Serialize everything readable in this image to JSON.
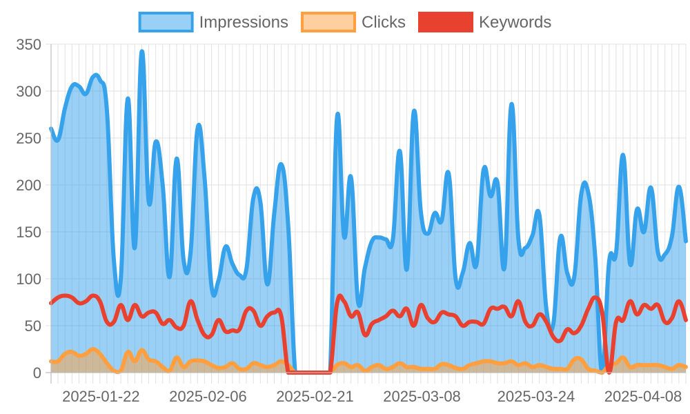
{
  "chart_data": {
    "type": "area",
    "x_start": "2025-01-15",
    "x_end": "2025-04-14",
    "x_tick_labels": [
      "2025-01-22",
      "2025-02-06",
      "2025-02-21",
      "2025-03-08",
      "2025-03-24",
      "2025-04-08"
    ],
    "ylim": [
      0,
      350
    ],
    "y_ticks": [
      0,
      50,
      100,
      150,
      200,
      250,
      300,
      350
    ],
    "grid": true,
    "legend_position": "top",
    "series": [
      {
        "name": "Impressions",
        "color": "#36a2eb",
        "fill": "rgba(54,162,235,0.5)",
        "values": [
          260,
          248,
          282,
          305,
          305,
          297,
          315,
          312,
          280,
          120,
          100,
          292,
          133,
          342,
          182,
          246,
          200,
          102,
          228,
          120,
          128,
          260,
          208,
          92,
          98,
          134,
          116,
          104,
          110,
          186,
          182,
          94,
          170,
          222,
          156,
          0,
          0,
          0,
          0,
          0,
          0,
          272,
          145,
          208,
          76,
          112,
          140,
          144,
          142,
          142,
          236,
          110,
          278,
          172,
          148,
          170,
          162,
          212,
          100,
          106,
          138,
          116,
          216,
          188,
          202,
          112,
          286,
          142,
          133,
          146,
          168,
          68,
          52,
          144,
          106,
          102,
          190,
          192,
          124,
          0,
          118,
          128,
          232,
          116,
          174,
          150,
          197,
          128,
          126,
          145,
          198,
          140
        ]
      },
      {
        "name": "Clicks",
        "color": "#ff9f40",
        "fill": "rgba(255,159,64,0.5)",
        "values": [
          12,
          12,
          20,
          22,
          18,
          20,
          25,
          20,
          10,
          2,
          2,
          22,
          12,
          24,
          14,
          12,
          6,
          2,
          16,
          6,
          12,
          13,
          12,
          8,
          5,
          6,
          10,
          4,
          4,
          10,
          8,
          6,
          8,
          12,
          8,
          0,
          0,
          0,
          0,
          0,
          0,
          8,
          10,
          6,
          8,
          2,
          6,
          8,
          4,
          6,
          10,
          6,
          6,
          4,
          4,
          4,
          9,
          8,
          5,
          4,
          8,
          10,
          12,
          12,
          10,
          10,
          12,
          8,
          10,
          6,
          8,
          6,
          4,
          4,
          4,
          14,
          14,
          4,
          2,
          0,
          8,
          10,
          16,
          6,
          8,
          8,
          8,
          8,
          6,
          4,
          8,
          6
        ]
      },
      {
        "name": "Keywords",
        "color": "#e8412f",
        "fill": "none",
        "values": [
          74,
          80,
          82,
          80,
          74,
          76,
          82,
          76,
          54,
          54,
          72,
          56,
          72,
          60,
          64,
          64,
          52,
          56,
          48,
          50,
          76,
          56,
          40,
          40,
          56,
          44,
          45,
          46,
          66,
          66,
          50,
          60,
          64,
          60,
          0,
          0,
          0,
          0,
          0,
          0,
          0,
          74,
          76,
          60,
          64,
          40,
          52,
          56,
          60,
          66,
          60,
          68,
          50,
          72,
          58,
          54,
          64,
          62,
          60,
          50,
          54,
          54,
          52,
          68,
          68,
          70,
          60,
          76,
          54,
          50,
          62,
          54,
          38,
          34,
          46,
          42,
          50,
          68,
          80,
          64,
          0,
          54,
          56,
          76,
          62,
          72,
          68,
          72,
          54,
          58,
          76,
          56
        ]
      }
    ]
  }
}
